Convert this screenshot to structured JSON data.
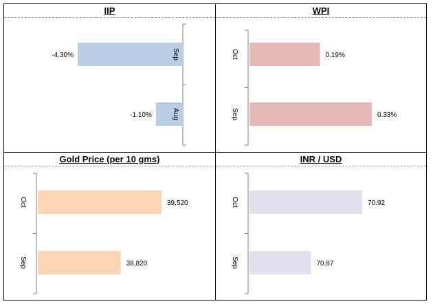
{
  "chart_data": [
    {
      "type": "bar",
      "title": "IIP",
      "orientation": "horizontal",
      "categories": [
        "Sep",
        "Aug"
      ],
      "values": [
        -4.3,
        -1.1
      ],
      "value_labels": [
        "-4.30%",
        "-1.10%"
      ],
      "color": "#b9cde5",
      "xlim": [
        -4.3,
        0
      ],
      "axis_position": "right"
    },
    {
      "type": "bar",
      "title": "WPI",
      "orientation": "horizontal",
      "categories": [
        "Oct",
        "Sep"
      ],
      "values": [
        0.19,
        0.33
      ],
      "value_labels": [
        "0.19%",
        "0.33%"
      ],
      "color": "#e6b9b8",
      "xlim": [
        0,
        0.33
      ],
      "axis_position": "left"
    },
    {
      "type": "bar",
      "title": "Gold Price (per 10 gms)",
      "orientation": "horizontal",
      "categories": [
        "Oct",
        "Sep"
      ],
      "values": [
        39520,
        38820
      ],
      "value_labels": [
        "39,520",
        "38,820"
      ],
      "color": "#fcd5b4",
      "xlim": [
        37400,
        39520
      ],
      "axis_position": "left"
    },
    {
      "type": "bar",
      "title": "INR / USD",
      "orientation": "horizontal",
      "categories": [
        "Oct",
        "Sep"
      ],
      "values": [
        70.92,
        70.87
      ],
      "value_labels": [
        "70.92",
        "70.87"
      ],
      "color": "#e4dfec",
      "xlim": [
        70.81,
        70.92
      ],
      "axis_position": "left"
    }
  ]
}
